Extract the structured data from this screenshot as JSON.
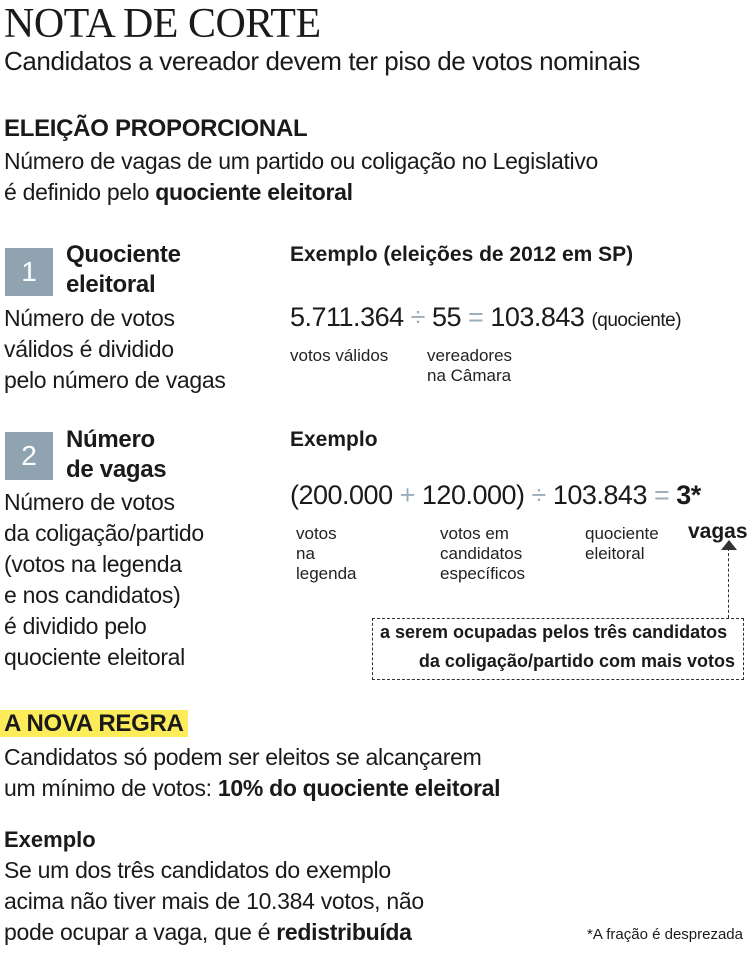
{
  "header": {
    "title": "NOTA DE CORTE",
    "subtitle": "Candidatos a vereador devem ter piso de votos nominais"
  },
  "intro": {
    "heading": "ELEIÇÃO PROPORCIONAL",
    "line1": "Número de vagas de um partido ou coligação no Legislativo",
    "line2_pre": "é definido pelo ",
    "line2_bold": "quociente eleitoral"
  },
  "step1": {
    "number": "1",
    "title_line1": "Quociente",
    "title_line2": "eleitoral",
    "desc": [
      "Número de votos",
      "válidos é dividido",
      "pelo número de vagas"
    ],
    "example_title": "Exemplo (eleições de 2012 em SP)",
    "eq": {
      "a": "5.711.364",
      "op1": "÷",
      "b": "55",
      "op2": "=",
      "c": "103.843",
      "c_note": "(quociente)"
    },
    "labels": {
      "a": "votos válidos",
      "b_line1": "vereadores",
      "b_line2": "na Câmara"
    }
  },
  "step2": {
    "number": "2",
    "title_line1": "Número",
    "title_line2": "de vagas",
    "desc": [
      "Número de votos",
      "da coligação/partido",
      "(votos na legenda",
      "e nos candidatos)",
      "é dividido pelo",
      "quociente eleitoral"
    ],
    "example_title": "Exemplo",
    "eq": {
      "a": "(200.000",
      "op1": "+",
      "b": "120.000)",
      "op2": "÷",
      "c": "103.843",
      "op3": "=",
      "d": "3*"
    },
    "labels": {
      "a": [
        "votos",
        "na",
        "legenda"
      ],
      "b": [
        "votos em",
        "candidatos",
        "específicos"
      ],
      "c": [
        "quociente",
        "eleitoral"
      ],
      "d": "vagas"
    },
    "note_line1": "a serem ocupadas pelos três candidatos",
    "note_line2": "da coligação/partido com mais votos"
  },
  "rule": {
    "heading": "A NOVA REGRA",
    "line1": "Candidatos só podem ser eleitos se alcançarem",
    "line2_pre": "um mínimo de votos: ",
    "line2_bold": "10% do quociente eleitoral",
    "example_title": "Exemplo",
    "ex_line1": "Se um dos três candidatos do exemplo",
    "ex_line2": "acima não tiver mais de 10.384 votos, não",
    "ex_line3_pre": "pode ocupar a vaga, que é ",
    "ex_line3_bold": "redistribuída"
  },
  "footnote": "*A fração é desprezada",
  "colors": {
    "number_box": "#8fa3b1",
    "operator": "#9aaebc",
    "highlight": "#fcec5a"
  }
}
